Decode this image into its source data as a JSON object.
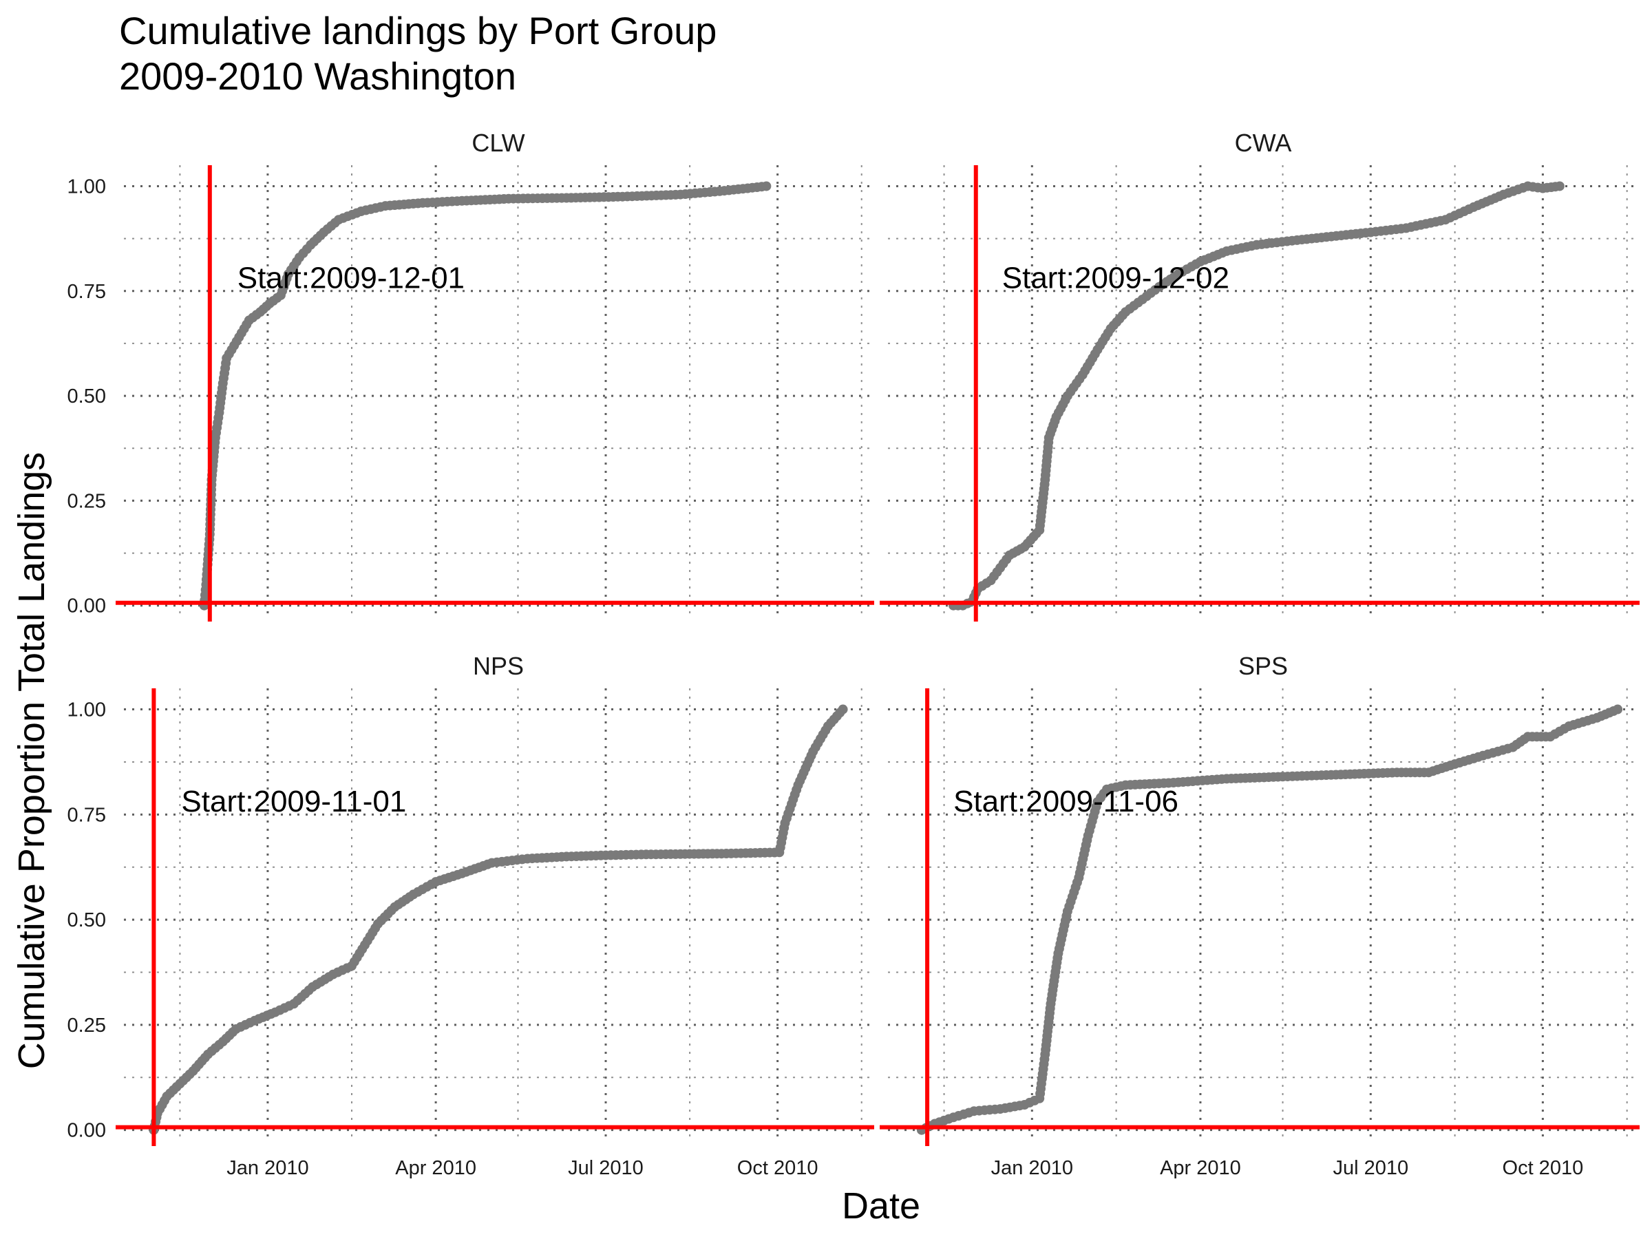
{
  "chart_data": {
    "type": "scatter",
    "title_lines": [
      "Cumulative landings by Port Group",
      "2009-2010 Washington"
    ],
    "xlabel": "Date",
    "ylabel": "Cumulative Proportion Total Landings",
    "x_ticks": [
      {
        "date": "2010-01-01",
        "label": "Jan 2010"
      },
      {
        "date": "2010-04-01",
        "label": "Apr 2010"
      },
      {
        "date": "2010-07-01",
        "label": "Jul 2010"
      },
      {
        "date": "2010-10-01",
        "label": "Oct 2010"
      }
    ],
    "x_minor": [
      "2009-11-15",
      "2010-02-15",
      "2010-05-15",
      "2010-08-15",
      "2010-11-15"
    ],
    "xlim": [
      "2009-10-16",
      "2010-11-21"
    ],
    "y_ticks": [
      0.0,
      0.25,
      0.5,
      0.75,
      1.0
    ],
    "y_tick_labels": [
      "0.00",
      "0.25",
      "0.50",
      "0.75",
      "1.00"
    ],
    "ylim": [
      -0.03,
      1.05
    ],
    "grid": true,
    "colors": {
      "points": "#7a7a7a",
      "reference": "#ff0000"
    },
    "panels": [
      {
        "name": "CLW",
        "start_date": "2009-12-01",
        "annotation": "Start:2009-12-01",
        "series": [
          {
            "x": "2009-11-28",
            "y": 0.0
          },
          {
            "x": "2009-11-29",
            "y": 0.05
          },
          {
            "x": "2009-12-01",
            "y": 0.17
          },
          {
            "x": "2009-12-02",
            "y": 0.3
          },
          {
            "x": "2009-12-04",
            "y": 0.4
          },
          {
            "x": "2009-12-06",
            "y": 0.46
          },
          {
            "x": "2009-12-08",
            "y": 0.53
          },
          {
            "x": "2009-12-10",
            "y": 0.59
          },
          {
            "x": "2009-12-14",
            "y": 0.62
          },
          {
            "x": "2009-12-18",
            "y": 0.65
          },
          {
            "x": "2009-12-22",
            "y": 0.68
          },
          {
            "x": "2009-12-28",
            "y": 0.7
          },
          {
            "x": "2010-01-02",
            "y": 0.72
          },
          {
            "x": "2010-01-08",
            "y": 0.74
          },
          {
            "x": "2010-01-12",
            "y": 0.79
          },
          {
            "x": "2010-01-18",
            "y": 0.83
          },
          {
            "x": "2010-01-24",
            "y": 0.86
          },
          {
            "x": "2010-01-31",
            "y": 0.89
          },
          {
            "x": "2010-02-08",
            "y": 0.92
          },
          {
            "x": "2010-02-20",
            "y": 0.94
          },
          {
            "x": "2010-03-05",
            "y": 0.953
          },
          {
            "x": "2010-03-25",
            "y": 0.96
          },
          {
            "x": "2010-04-15",
            "y": 0.965
          },
          {
            "x": "2010-05-10",
            "y": 0.97
          },
          {
            "x": "2010-06-10",
            "y": 0.972
          },
          {
            "x": "2010-07-10",
            "y": 0.975
          },
          {
            "x": "2010-08-10",
            "y": 0.98
          },
          {
            "x": "2010-08-31",
            "y": 0.988
          },
          {
            "x": "2010-09-15",
            "y": 0.995
          },
          {
            "x": "2010-09-25",
            "y": 1.0
          }
        ]
      },
      {
        "name": "CWA",
        "start_date": "2009-12-02",
        "annotation": "Start:2009-12-02",
        "series": [
          {
            "x": "2009-11-20",
            "y": 0.0
          },
          {
            "x": "2009-11-25",
            "y": 0.0
          },
          {
            "x": "2009-11-30",
            "y": 0.01
          },
          {
            "x": "2009-12-03",
            "y": 0.04
          },
          {
            "x": "2009-12-10",
            "y": 0.06
          },
          {
            "x": "2009-12-15",
            "y": 0.09
          },
          {
            "x": "2009-12-20",
            "y": 0.12
          },
          {
            "x": "2009-12-28",
            "y": 0.14
          },
          {
            "x": "2010-01-05",
            "y": 0.18
          },
          {
            "x": "2010-01-08",
            "y": 0.3
          },
          {
            "x": "2010-01-10",
            "y": 0.4
          },
          {
            "x": "2010-01-14",
            "y": 0.45
          },
          {
            "x": "2010-01-20",
            "y": 0.5
          },
          {
            "x": "2010-01-28",
            "y": 0.55
          },
          {
            "x": "2010-02-05",
            "y": 0.61
          },
          {
            "x": "2010-02-12",
            "y": 0.66
          },
          {
            "x": "2010-02-20",
            "y": 0.7
          },
          {
            "x": "2010-03-01",
            "y": 0.73
          },
          {
            "x": "2010-03-10",
            "y": 0.76
          },
          {
            "x": "2010-03-20",
            "y": 0.79
          },
          {
            "x": "2010-04-01",
            "y": 0.82
          },
          {
            "x": "2010-04-15",
            "y": 0.845
          },
          {
            "x": "2010-05-01",
            "y": 0.86
          },
          {
            "x": "2010-05-20",
            "y": 0.87
          },
          {
            "x": "2010-06-10",
            "y": 0.88
          },
          {
            "x": "2010-07-01",
            "y": 0.89
          },
          {
            "x": "2010-07-20",
            "y": 0.9
          },
          {
            "x": "2010-08-10",
            "y": 0.92
          },
          {
            "x": "2010-08-25",
            "y": 0.95
          },
          {
            "x": "2010-09-10",
            "y": 0.98
          },
          {
            "x": "2010-09-23",
            "y": 1.0
          },
          {
            "x": "2010-10-01",
            "y": 0.995
          },
          {
            "x": "2010-10-10",
            "y": 1.0
          }
        ]
      },
      {
        "name": "NPS",
        "start_date": "2009-11-01",
        "annotation": "Start:2009-11-01",
        "series": [
          {
            "x": "2009-11-01",
            "y": 0.0
          },
          {
            "x": "2009-11-03",
            "y": 0.04
          },
          {
            "x": "2009-11-08",
            "y": 0.08
          },
          {
            "x": "2009-11-15",
            "y": 0.11
          },
          {
            "x": "2009-11-22",
            "y": 0.14
          },
          {
            "x": "2009-11-30",
            "y": 0.18
          },
          {
            "x": "2009-12-08",
            "y": 0.21
          },
          {
            "x": "2009-12-15",
            "y": 0.24
          },
          {
            "x": "2009-12-25",
            "y": 0.26
          },
          {
            "x": "2010-01-05",
            "y": 0.28
          },
          {
            "x": "2010-01-15",
            "y": 0.3
          },
          {
            "x": "2010-01-25",
            "y": 0.34
          },
          {
            "x": "2010-02-05",
            "y": 0.37
          },
          {
            "x": "2010-02-15",
            "y": 0.39
          },
          {
            "x": "2010-02-22",
            "y": 0.44
          },
          {
            "x": "2010-03-01",
            "y": 0.49
          },
          {
            "x": "2010-03-10",
            "y": 0.53
          },
          {
            "x": "2010-03-20",
            "y": 0.56
          },
          {
            "x": "2010-04-01",
            "y": 0.59
          },
          {
            "x": "2010-04-15",
            "y": 0.61
          },
          {
            "x": "2010-05-01",
            "y": 0.635
          },
          {
            "x": "2010-05-20",
            "y": 0.645
          },
          {
            "x": "2010-06-10",
            "y": 0.65
          },
          {
            "x": "2010-07-01",
            "y": 0.653
          },
          {
            "x": "2010-07-20",
            "y": 0.655
          },
          {
            "x": "2010-08-10",
            "y": 0.656
          },
          {
            "x": "2010-09-01",
            "y": 0.657
          },
          {
            "x": "2010-10-02",
            "y": 0.66
          },
          {
            "x": "2010-10-05",
            "y": 0.73
          },
          {
            "x": "2010-10-12",
            "y": 0.82
          },
          {
            "x": "2010-10-20",
            "y": 0.9
          },
          {
            "x": "2010-10-28",
            "y": 0.96
          },
          {
            "x": "2010-11-05",
            "y": 1.0
          }
        ]
      },
      {
        "name": "SPS",
        "start_date": "2009-11-06",
        "annotation": "Start:2009-11-06",
        "series": [
          {
            "x": "2009-11-03",
            "y": 0.0
          },
          {
            "x": "2009-11-10",
            "y": 0.015
          },
          {
            "x": "2009-11-20",
            "y": 0.03
          },
          {
            "x": "2009-12-01",
            "y": 0.045
          },
          {
            "x": "2009-12-15",
            "y": 0.05
          },
          {
            "x": "2009-12-28",
            "y": 0.06
          },
          {
            "x": "2010-01-05",
            "y": 0.075
          },
          {
            "x": "2010-01-08",
            "y": 0.18
          },
          {
            "x": "2010-01-11",
            "y": 0.3
          },
          {
            "x": "2010-01-15",
            "y": 0.42
          },
          {
            "x": "2010-01-20",
            "y": 0.52
          },
          {
            "x": "2010-01-26",
            "y": 0.6
          },
          {
            "x": "2010-01-31",
            "y": 0.7
          },
          {
            "x": "2010-02-05",
            "y": 0.78
          },
          {
            "x": "2010-02-10",
            "y": 0.81
          },
          {
            "x": "2010-02-20",
            "y": 0.82
          },
          {
            "x": "2010-03-15",
            "y": 0.825
          },
          {
            "x": "2010-04-15",
            "y": 0.835
          },
          {
            "x": "2010-05-15",
            "y": 0.84
          },
          {
            "x": "2010-06-15",
            "y": 0.845
          },
          {
            "x": "2010-07-15",
            "y": 0.85
          },
          {
            "x": "2010-08-01",
            "y": 0.85
          },
          {
            "x": "2010-08-15",
            "y": 0.87
          },
          {
            "x": "2010-08-30",
            "y": 0.89
          },
          {
            "x": "2010-09-15",
            "y": 0.91
          },
          {
            "x": "2010-09-23",
            "y": 0.935
          },
          {
            "x": "2010-10-05",
            "y": 0.935
          },
          {
            "x": "2010-10-15",
            "y": 0.96
          },
          {
            "x": "2010-10-30",
            "y": 0.98
          },
          {
            "x": "2010-11-10",
            "y": 1.0
          }
        ]
      }
    ]
  }
}
